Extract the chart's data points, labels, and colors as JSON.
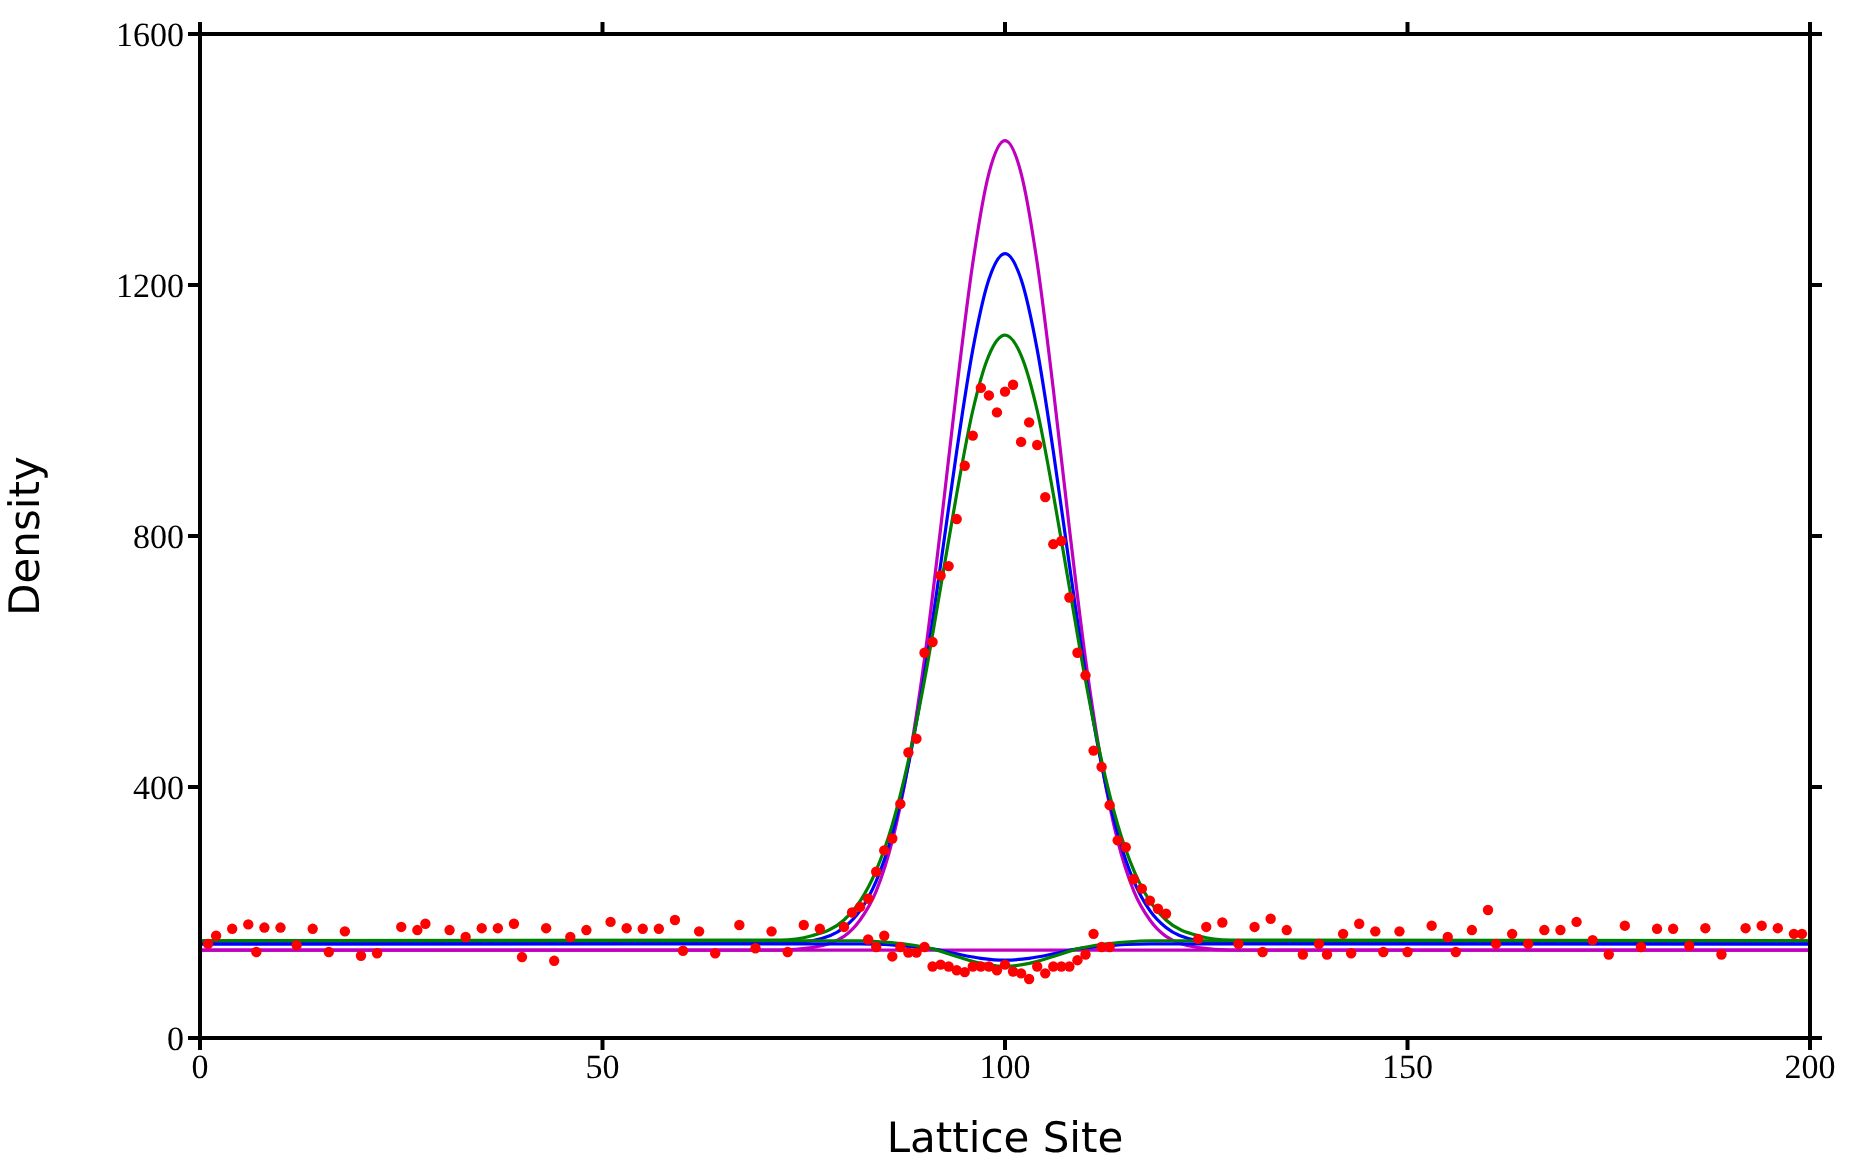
{
  "chart_data": {
    "type": "line",
    "xlabel": "Lattice Site",
    "ylabel": "Density",
    "xlim": [
      0,
      200
    ],
    "xticks": [
      0,
      50,
      100,
      150,
      200
    ],
    "ylim": [
      0,
      1600
    ],
    "yticks": [
      0,
      400,
      800,
      1200,
      1600
    ],
    "grid": false,
    "legend": false,
    "marker": "none",
    "line_style": "solid",
    "series": [
      {
        "type": "scatter",
        "marker": "circle",
        "color": "#ff0000",
        "x": [
          1,
          2,
          4,
          6,
          7,
          8,
          10,
          12,
          14,
          16,
          18,
          20,
          22,
          25,
          27,
          28,
          31,
          33,
          35,
          37,
          39,
          40,
          43,
          44,
          46,
          48,
          51,
          53,
          55,
          57,
          59,
          60,
          62,
          64,
          67,
          69,
          71,
          73,
          75,
          77,
          80,
          81,
          82,
          83,
          84,
          85,
          86,
          87,
          88,
          89,
          90,
          91,
          92,
          93,
          94,
          95,
          96,
          97,
          98,
          99,
          100,
          101,
          102,
          103,
          104,
          105,
          106,
          107,
          108,
          109,
          110,
          111,
          112,
          113,
          114,
          115,
          116,
          117,
          118,
          119,
          120,
          124,
          125,
          127,
          129,
          131,
          132,
          133,
          135,
          137,
          139,
          140,
          142,
          143,
          144,
          146,
          147,
          149,
          150,
          153,
          155,
          156,
          158,
          160,
          161,
          163,
          165,
          167,
          169,
          171,
          173,
          175,
          177,
          179,
          181,
          183,
          185,
          187,
          189,
          192,
          194,
          196,
          198,
          199
        ],
        "values": [
          150,
          163,
          174,
          181,
          137,
          176,
          176,
          148,
          174,
          137,
          170,
          131,
          135,
          177,
          172,
          182,
          172,
          161,
          175,
          175,
          182,
          129,
          175,
          123,
          161,
          172,
          185,
          175,
          174,
          174,
          188,
          139,
          170,
          135,
          180,
          143,
          170,
          137,
          180,
          174,
          177,
          200,
          209,
          222,
          265,
          299,
          318,
          373,
          455,
          477,
          614,
          631,
          737,
          752,
          827,
          912,
          960,
          1036,
          1024,
          997,
          1030,
          1041,
          950,
          981,
          945,
          862,
          787,
          792,
          702,
          614,
          578,
          458,
          432,
          371,
          315,
          304,
          253,
          238,
          219,
          206,
          198,
          158,
          177,
          184,
          150,
          177,
          137,
          190,
          172,
          133,
          150,
          133,
          166,
          135,
          182,
          170,
          137,
          170,
          137,
          179,
          161,
          137,
          172,
          204,
          150,
          166,
          150,
          172,
          172,
          185,
          156,
          133,
          179,
          145,
          174,
          174,
          147,
          175,
          133,
          175,
          179,
          175,
          166,
          166
        ]
      },
      {
        "type": "scatter",
        "marker": "circle",
        "color": "#ff0000",
        "x": [
          83,
          84,
          85,
          86,
          87,
          88,
          89,
          90,
          91,
          92,
          93,
          94,
          95,
          96,
          97,
          98,
          99,
          100,
          101,
          102,
          103,
          104,
          105,
          106,
          107,
          108,
          109,
          110,
          111,
          112,
          113
        ],
        "values": [
          157,
          145,
          163,
          130,
          145,
          136,
          136,
          145,
          114,
          117,
          114,
          108,
          105,
          114,
          114,
          114,
          108,
          117,
          106,
          103,
          94,
          114,
          103,
          114,
          114,
          114,
          124,
          133,
          166,
          145,
          145
        ]
      },
      {
        "color": "#bf00bf",
        "x": [
          0,
          72,
          76,
          80,
          82,
          84,
          86,
          88,
          90,
          92,
          94,
          96,
          98,
          100,
          102,
          104,
          106,
          108,
          110,
          112,
          114,
          116,
          118,
          120,
          124,
          128,
          200
        ],
        "values": [
          140,
          140,
          144,
          162,
          188,
          234,
          314,
          437,
          604,
          812,
          1034,
          1235,
          1378,
          1430,
          1378,
          1235,
          1034,
          812,
          604,
          437,
          314,
          234,
          188,
          162,
          144,
          140,
          140
        ]
      },
      {
        "color": "#0000ff",
        "x": [
          0,
          72,
          76,
          80,
          82,
          84,
          86,
          88,
          90,
          92,
          94,
          96,
          98,
          100,
          102,
          104,
          106,
          108,
          110,
          112,
          114,
          116,
          118,
          120,
          124,
          128,
          200
        ],
        "values": [
          150,
          151,
          155,
          176,
          203,
          250,
          325,
          435,
          580,
          754,
          935,
          1097,
          1209,
          1250,
          1209,
          1097,
          935,
          754,
          580,
          435,
          325,
          250,
          203,
          176,
          155,
          151,
          150
        ]
      },
      {
        "color": "#008000",
        "x": [
          0,
          72,
          76,
          80,
          82,
          84,
          86,
          88,
          90,
          92,
          94,
          96,
          98,
          100,
          102,
          104,
          106,
          108,
          110,
          112,
          114,
          116,
          118,
          120,
          124,
          128,
          200
        ],
        "values": [
          155,
          156,
          163,
          188,
          218,
          267,
          340,
          442,
          570,
          718,
          867,
          1000,
          1088,
          1120,
          1088,
          1000,
          867,
          718,
          570,
          442,
          340,
          267,
          218,
          188,
          163,
          156,
          155
        ]
      },
      {
        "color": "#bf00bf",
        "x": [
          0,
          200
        ],
        "values": [
          140,
          140
        ]
      },
      {
        "color": "#0000ff",
        "x": [
          0,
          82,
          85,
          88,
          91,
          94,
          97,
          100,
          103,
          106,
          109,
          112,
          115,
          118,
          200
        ],
        "values": [
          150,
          150,
          149,
          146,
          142,
          134,
          127,
          124,
          127,
          134,
          142,
          146,
          149,
          150,
          150
        ]
      },
      {
        "color": "#008000",
        "x": [
          0,
          82,
          85,
          88,
          91,
          94,
          97,
          100,
          103,
          106,
          109,
          112,
          115,
          118,
          200
        ],
        "values": [
          155,
          155,
          153,
          149,
          142,
          130,
          119,
          114,
          119,
          130,
          142,
          149,
          153,
          155,
          155
        ]
      }
    ]
  }
}
